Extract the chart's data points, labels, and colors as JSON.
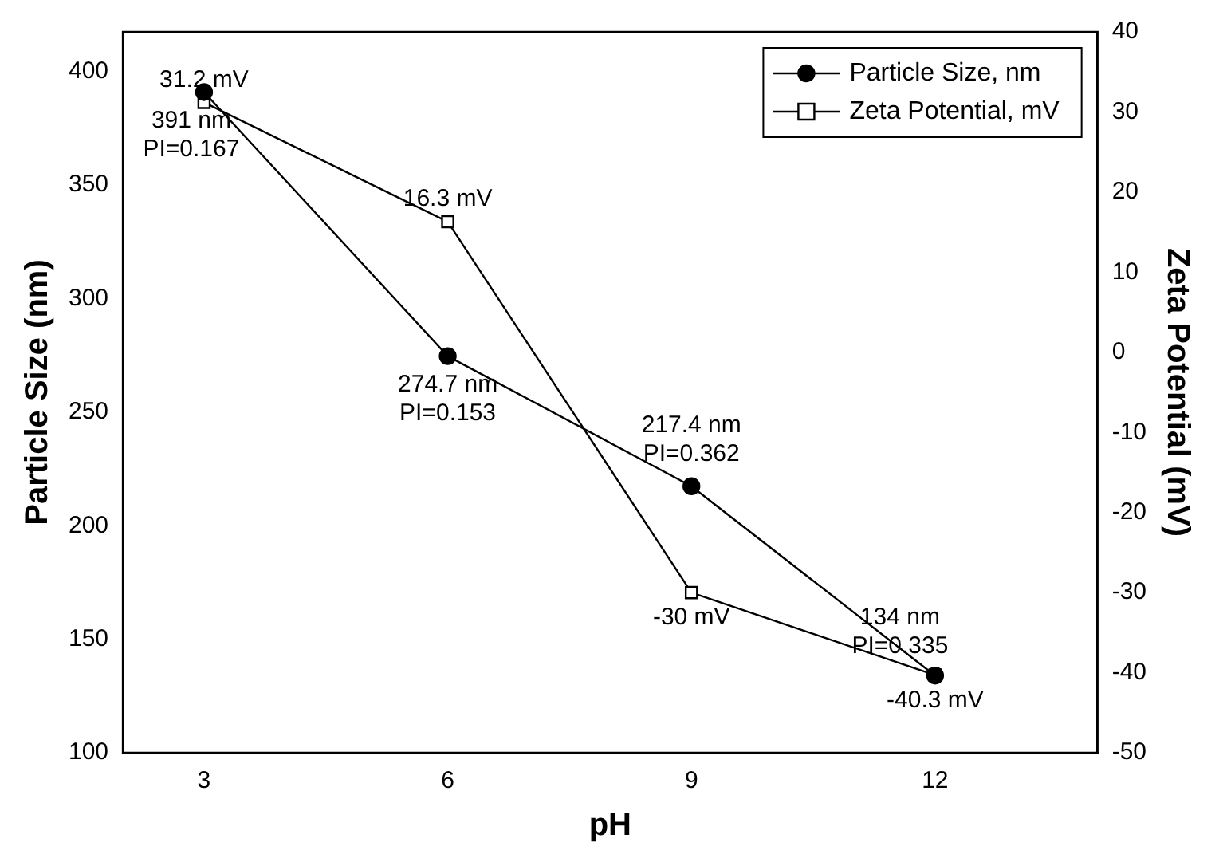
{
  "chart_data": {
    "type": "line",
    "xlabel": "pH",
    "ylabel": "Particle Size (nm)",
    "y2label": "Zeta Potential (mV)",
    "x": [
      3,
      6,
      9,
      12
    ],
    "series": [
      {
        "name": "Particle Size, nm",
        "color": "#000000",
        "marker": "circle",
        "values": [
          391,
          274.7,
          217.4,
          134
        ],
        "value_labels": [
          "391 nm\nPI=0.167",
          "274.7 nm\nPI=0.153",
          "217.4 nm\nPI=0.362",
          "134 nm\nPI=0.335"
        ]
      },
      {
        "name": "Zeta Potential, mV",
        "color": "#000000",
        "marker": "square",
        "axis": "y2",
        "values": [
          31.2,
          16.3,
          -30,
          -40.3
        ],
        "value_labels": [
          "31.2 mV",
          "16.3 mV",
          "-30 mV",
          "-40.3 mV"
        ]
      }
    ],
    "xlim": [
      2,
      14
    ],
    "xticks": [
      3,
      6,
      9,
      12
    ],
    "ylim": [
      100,
      417.5
    ],
    "yticks": [
      100,
      150,
      200,
      250,
      300,
      350,
      400
    ],
    "y2lim": [
      -50,
      40
    ],
    "y2ticks": [
      -50,
      -40,
      -30,
      -20,
      -10,
      0,
      10,
      20,
      30,
      40
    ],
    "grid": false,
    "legend": "top right",
    "line_style": "solid"
  }
}
